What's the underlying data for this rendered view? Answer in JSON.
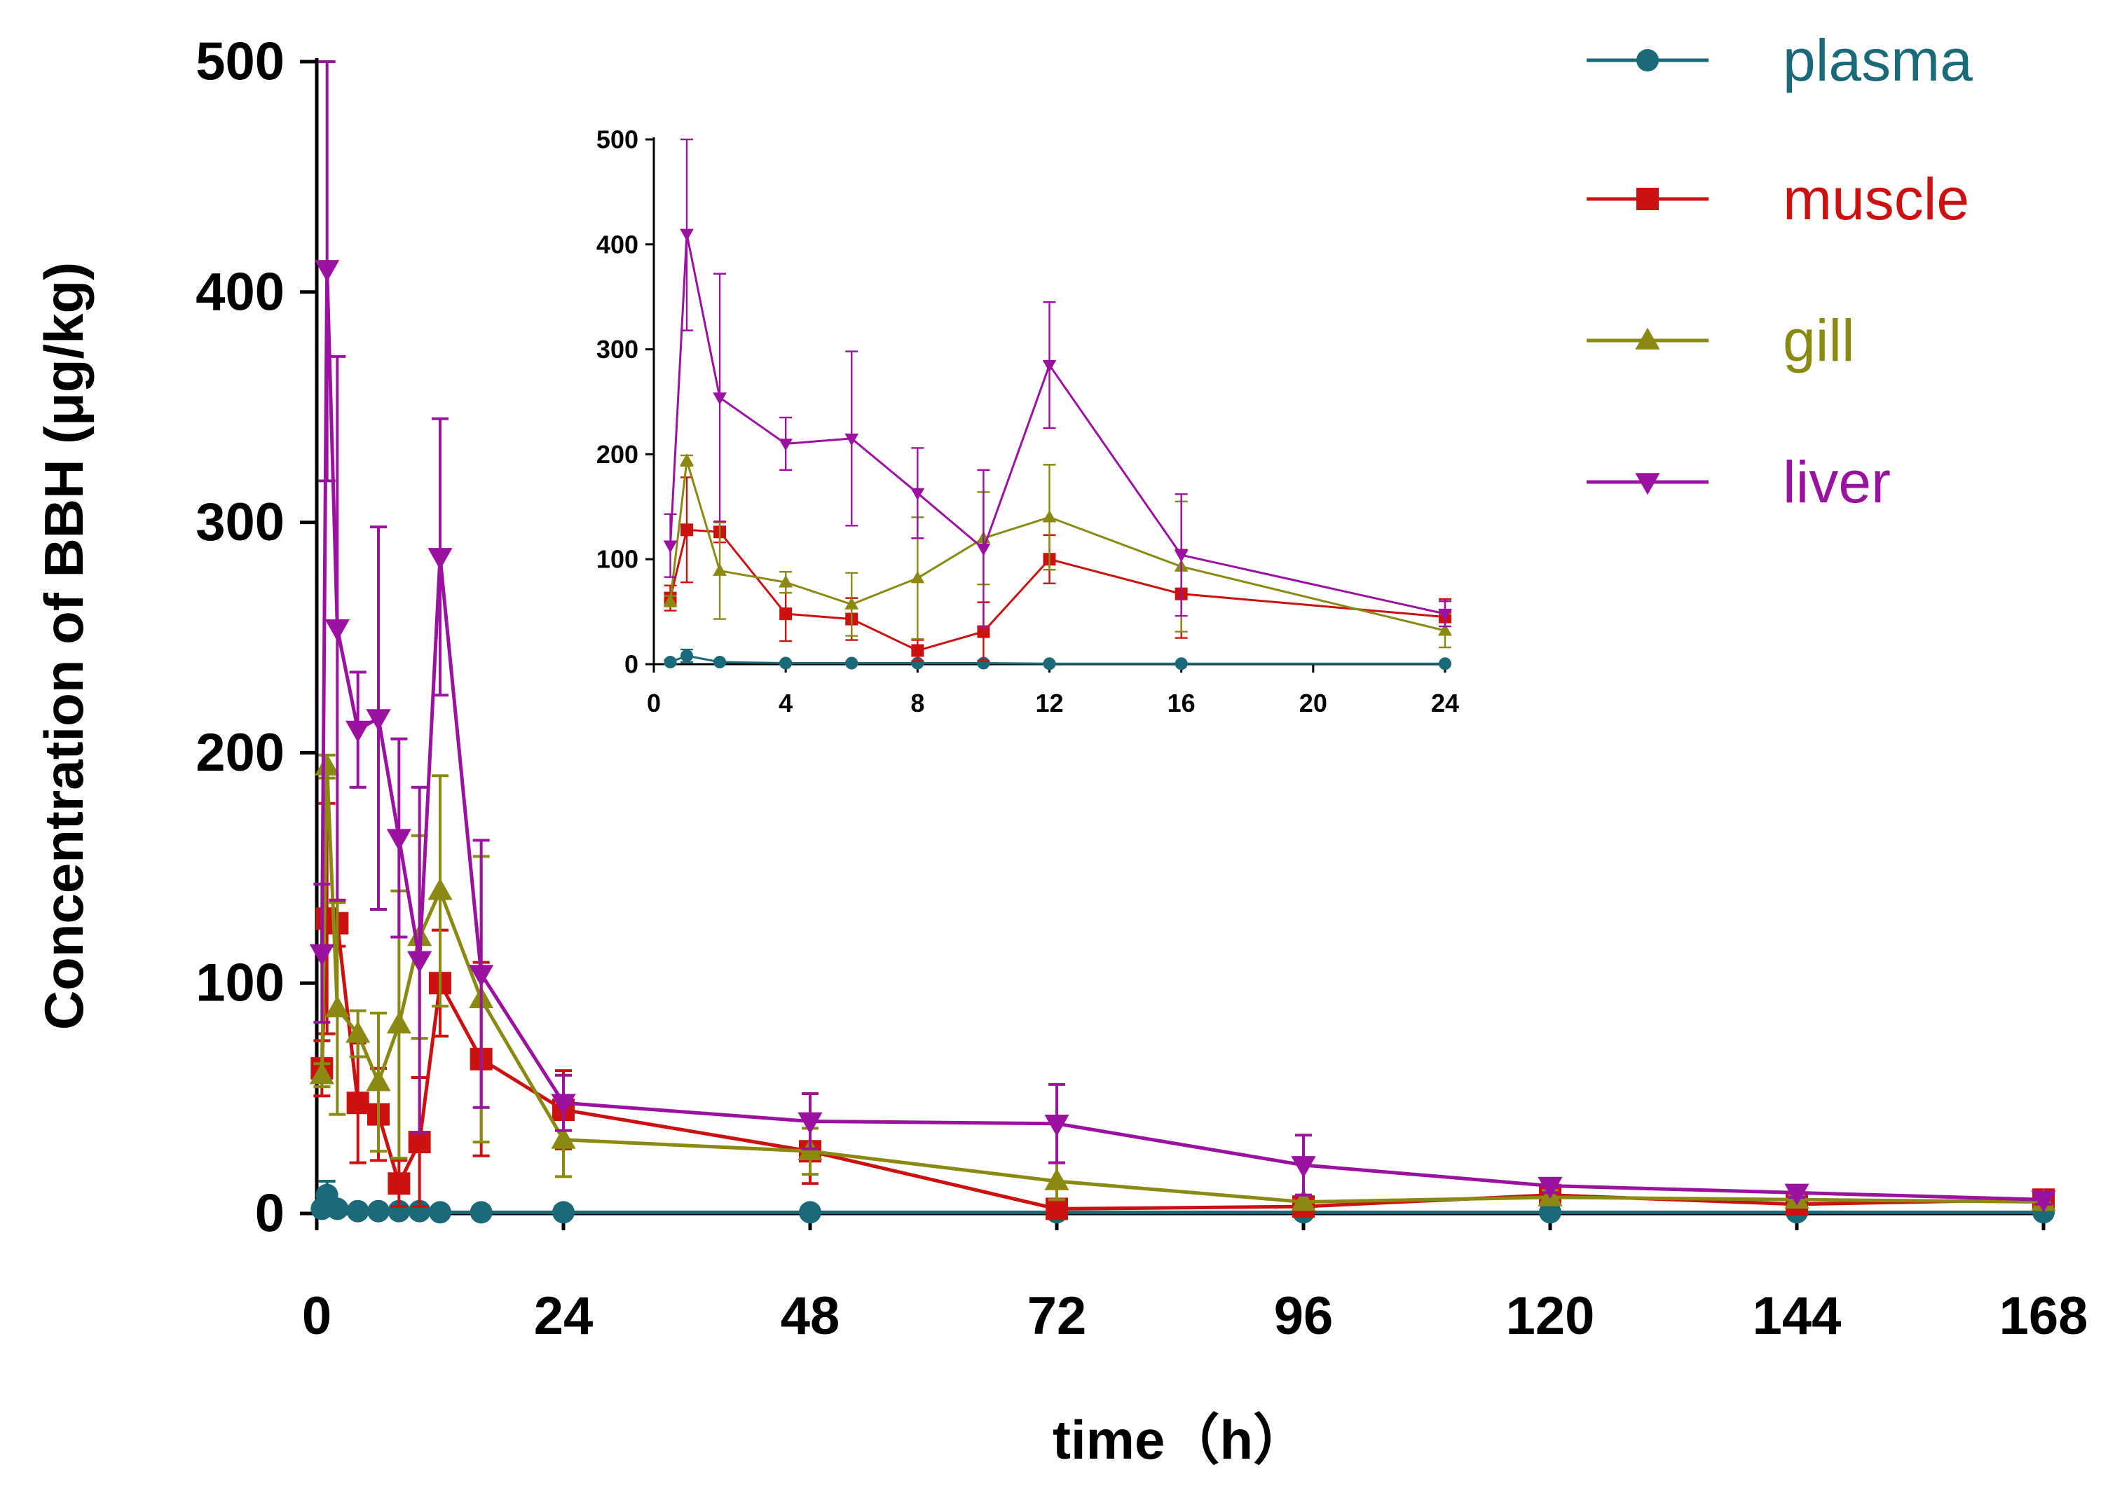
{
  "chart_data": {
    "type": "line",
    "ylabel": "Concentration of BBH (μg/kg)",
    "xlabel": "time（h）",
    "xlim": [
      0,
      168
    ],
    "ylim": [
      0,
      500
    ],
    "x_ticks": [
      "0",
      "24",
      "48",
      "72",
      "96",
      "120",
      "144",
      "168"
    ],
    "y_ticks": [
      "0",
      "100",
      "200",
      "300",
      "400",
      "500"
    ],
    "legend_position": "top-right",
    "x": [
      0.5,
      1,
      2,
      4,
      6,
      8,
      10,
      12,
      16,
      24,
      48,
      72,
      96,
      120,
      144,
      168
    ],
    "series": [
      {
        "name": "plasma",
        "color": "#1a6a7a",
        "marker": "circle",
        "values": [
          2,
          8,
          2,
          1,
          1,
          1,
          1,
          0.5,
          0.5,
          0.5,
          0.5,
          0.5,
          0.5,
          0.5,
          0.5,
          0.5
        ],
        "errors": [
          2,
          6,
          1,
          1,
          1,
          1,
          1,
          0.5,
          0.5,
          0.5,
          0.5,
          0.5,
          0.5,
          0.5,
          0.5,
          0.5
        ]
      },
      {
        "name": "muscle",
        "color": "#cc1111",
        "marker": "square",
        "values": [
          63,
          128,
          126,
          48,
          43,
          13,
          31,
          100,
          67,
          45,
          27,
          2,
          3,
          8,
          4,
          6
        ],
        "errors": [
          12,
          50,
          10,
          26,
          20,
          10,
          28,
          23,
          42,
          17,
          14,
          2,
          2,
          2,
          2,
          2
        ]
      },
      {
        "name": "gill",
        "color": "#8a8a12",
        "marker": "triangle-up",
        "values": [
          60,
          194,
          89,
          78,
          57,
          82,
          120,
          140,
          93,
          32,
          27,
          14,
          5,
          7,
          6,
          5
        ],
        "errors": [
          5,
          5,
          46,
          10,
          30,
          58,
          44,
          50,
          62,
          16,
          10,
          8,
          3,
          3,
          2,
          2
        ]
      },
      {
        "name": "liver",
        "color": "#9b12a0",
        "marker": "triangle-down",
        "values": [
          113,
          410,
          254,
          210,
          215,
          163,
          110,
          285,
          104,
          48,
          40,
          39,
          21,
          12,
          9,
          6
        ],
        "errors": [
          30,
          92,
          118,
          25,
          83,
          43,
          75,
          60,
          58,
          12,
          12,
          17,
          13,
          3,
          2,
          2
        ]
      }
    ],
    "inset": {
      "xlim": [
        0,
        24
      ],
      "ylim": [
        0,
        500
      ],
      "x_ticks": [
        "0",
        "4",
        "8",
        "12",
        "16",
        "20",
        "24"
      ],
      "y_ticks": [
        "0",
        "100",
        "200",
        "300",
        "400",
        "500"
      ]
    }
  }
}
